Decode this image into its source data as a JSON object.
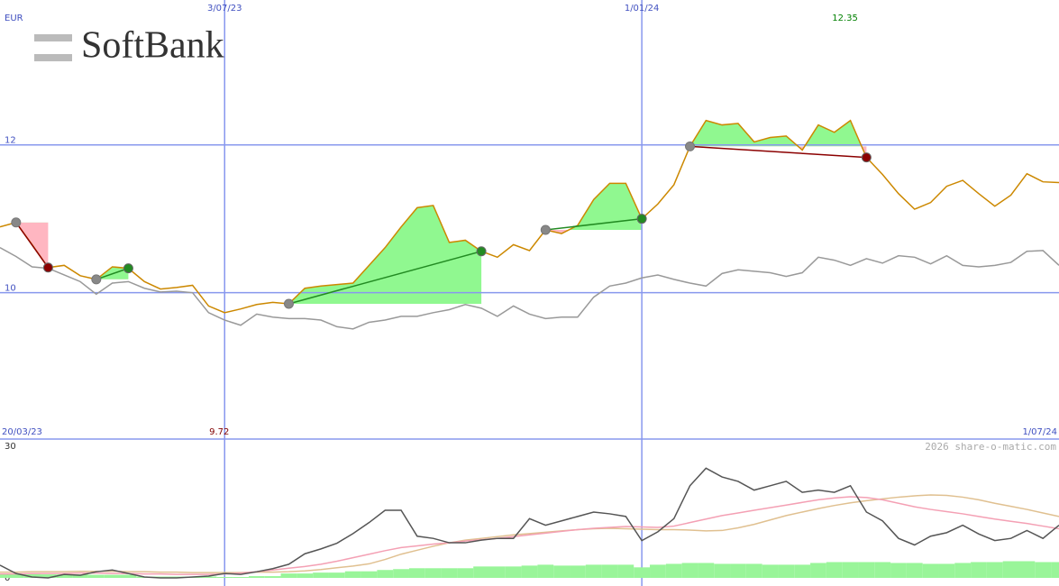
{
  "chart_data": [
    {
      "type": "line",
      "title": "SoftBank",
      "y_label": "EUR",
      "categories": [
        "20/03/23",
        null,
        null,
        null,
        null,
        null,
        null,
        null,
        null,
        null,
        null,
        null,
        null,
        null,
        "3/07/23",
        null,
        null,
        null,
        null,
        null,
        null,
        null,
        null,
        null,
        null,
        null,
        null,
        null,
        null,
        null,
        null,
        null,
        null,
        null,
        null,
        null,
        null,
        null,
        null,
        null,
        "1/01/24",
        null,
        null,
        null,
        null,
        null,
        null,
        null,
        null,
        null,
        null,
        null,
        null,
        null,
        null,
        null,
        null,
        null,
        null,
        null,
        null,
        null,
        null,
        null,
        null,
        null,
        "1/07/24"
      ],
      "series": [
        {
          "color": "#999999",
          "values": [
            10.61,
            10.49,
            10.35,
            10.33,
            10.24,
            10.15,
            9.98,
            10.13,
            10.15,
            10.06,
            10.01,
            10.02,
            10.0,
            9.73,
            9.63,
            9.56,
            9.71,
            9.67,
            9.65,
            9.65,
            9.63,
            9.54,
            9.51,
            9.6,
            9.63,
            9.68,
            9.68,
            9.73,
            9.77,
            9.84,
            9.79,
            9.68,
            9.82,
            9.71,
            9.65,
            9.67,
            9.67,
            9.94,
            10.09,
            10.13,
            10.2,
            10.24,
            10.18,
            10.13,
            10.09,
            10.26,
            10.31,
            10.29,
            10.27,
            10.22,
            10.27,
            10.48,
            10.44,
            10.37,
            10.46,
            10.4,
            10.5,
            10.48,
            10.39,
            10.5,
            10.37,
            10.35,
            10.37,
            10.41,
            10.56,
            10.57,
            10.37
          ]
        },
        {
          "color": "#cc8800",
          "values": [
            10.89,
            10.95,
            10.65,
            10.34,
            10.37,
            10.23,
            10.18,
            10.35,
            10.33,
            10.15,
            10.05,
            10.07,
            10.1,
            9.82,
            9.73,
            9.78,
            9.84,
            9.87,
            9.85,
            10.06,
            10.09,
            10.11,
            10.13,
            10.37,
            10.61,
            10.89,
            11.15,
            11.18,
            10.68,
            10.71,
            10.56,
            10.48,
            10.65,
            10.57,
            10.85,
            10.8,
            10.91,
            11.26,
            11.48,
            11.48,
            11.0,
            11.2,
            11.46,
            11.98,
            12.33,
            12.27,
            12.29,
            12.04,
            12.1,
            12.12,
            11.93,
            12.27,
            12.17,
            12.33,
            11.83,
            11.6,
            11.34,
            11.13,
            11.22,
            11.44,
            11.52,
            11.34,
            11.17,
            11.32,
            11.61,
            11.5,
            11.49
          ]
        }
      ],
      "trades": [
        {
          "start": 1,
          "end": 3,
          "color": "#8b0000"
        },
        {
          "start": 6,
          "end": 8,
          "color": "#228b22"
        },
        {
          "start": 18,
          "end": 30,
          "color": "#228b22"
        },
        {
          "start": 34,
          "end": 40,
          "color": "#228b22"
        },
        {
          "start": 43,
          "end": 54,
          "color": "#8b0000"
        }
      ],
      "annotations": [
        {
          "text": "12.35",
          "color": "#008000"
        },
        {
          "text": "9.72",
          "color": "#800000"
        }
      ],
      "ylim": [
        8.02,
        13.96
      ],
      "yticks": [
        10,
        12
      ],
      "grid": true
    },
    {
      "type": "line",
      "credit": "2026 share-o-matic.com",
      "series": [
        {
          "type": "bar",
          "color": "#99f599",
          "values": [
            0.9,
            0.9,
            0.9,
            0.8,
            0.8,
            0.8,
            0.7,
            0.7,
            0.7,
            0.3,
            0.3,
            0.3,
            0.3,
            0.3,
            0.2,
            0.2,
            0.4,
            0.4,
            1.0,
            1.0,
            1.2,
            1.2,
            1.5,
            1.5,
            1.8,
            2.0,
            2.2,
            2.2,
            2.2,
            2.2,
            2.6,
            2.6,
            2.6,
            2.8,
            3.0,
            2.8,
            2.8,
            3.0,
            3.0,
            3.0,
            2.4,
            3.0,
            3.2,
            3.4,
            3.4,
            3.2,
            3.2,
            3.2,
            3.0,
            3.0,
            3.0,
            3.4,
            3.6,
            3.6,
            3.6,
            3.6,
            3.4,
            3.4,
            3.2,
            3.2,
            3.4,
            3.6,
            3.6,
            3.8,
            3.8,
            3.6,
            3.6
          ]
        },
        {
          "color": "#e0c090",
          "values": [
            1.3,
            1.3,
            1.4,
            1.4,
            1.4,
            1.5,
            1.5,
            1.5,
            1.4,
            1.4,
            1.3,
            1.3,
            1.2,
            1.2,
            1.2,
            1.2,
            1.3,
            1.3,
            1.4,
            1.6,
            1.9,
            2.3,
            2.7,
            3.2,
            4.2,
            5.4,
            6.3,
            7.2,
            8.0,
            8.6,
            9.0,
            9.4,
            9.8,
            10.1,
            10.4,
            10.7,
            11.0,
            11.2,
            11.3,
            11.2,
            11.1,
            11.0,
            11.0,
            10.9,
            10.7,
            10.8,
            11.4,
            12.2,
            13.2,
            14.2,
            15.0,
            15.8,
            16.5,
            17.1,
            17.6,
            18.0,
            18.4,
            18.7,
            18.9,
            18.8,
            18.4,
            17.8,
            17.0,
            16.3,
            15.6,
            14.8,
            14.0
          ]
        },
        {
          "color": "#f4a0b4",
          "values": [
            0.9,
            0.9,
            1.0,
            1.0,
            1.0,
            1.1,
            1.1,
            1.0,
            1.0,
            0.9,
            0.9,
            0.8,
            0.8,
            0.8,
            0.9,
            1.1,
            1.4,
            1.8,
            2.2,
            2.6,
            3.1,
            3.8,
            4.6,
            5.4,
            6.2,
            6.9,
            7.3,
            7.7,
            8.0,
            8.4,
            8.7,
            9.0,
            9.4,
            9.8,
            10.2,
            10.6,
            11.0,
            11.3,
            11.5,
            11.7,
            11.6,
            11.5,
            11.8,
            12.6,
            13.4,
            14.2,
            14.8,
            15.4,
            16.0,
            16.6,
            17.2,
            17.8,
            18.2,
            18.5,
            18.3,
            17.8,
            17.0,
            16.2,
            15.6,
            15.1,
            14.6,
            14.0,
            13.4,
            12.9,
            12.4,
            11.8,
            11.2
          ]
        },
        {
          "color": "#555555",
          "values": [
            2.9,
            1.0,
            0.2,
            0,
            0.8,
            0.6,
            1.4,
            1.8,
            1.0,
            0.2,
            0,
            0,
            0.2,
            0.4,
            1.0,
            0.8,
            1.4,
            2.1,
            3.1,
            5.5,
            6.6,
            7.9,
            10.1,
            12.6,
            15.4,
            15.4,
            9.5,
            9.0,
            8.0,
            8.0,
            8.6,
            9.0,
            9.0,
            13.5,
            12.0,
            13.0,
            14.0,
            15.0,
            14.6,
            14.0,
            8.5,
            10.5,
            13.5,
            21,
            25,
            23,
            22,
            20,
            21,
            22,
            19.5,
            20,
            19.5,
            21,
            15,
            13,
            9,
            7.5,
            9.5,
            10.3,
            12,
            10,
            8.5,
            9,
            10.8,
            9,
            12
          ]
        }
      ],
      "ylim": [
        -1.85,
        31.64
      ],
      "yticks": [
        0,
        30
      ]
    }
  ]
}
